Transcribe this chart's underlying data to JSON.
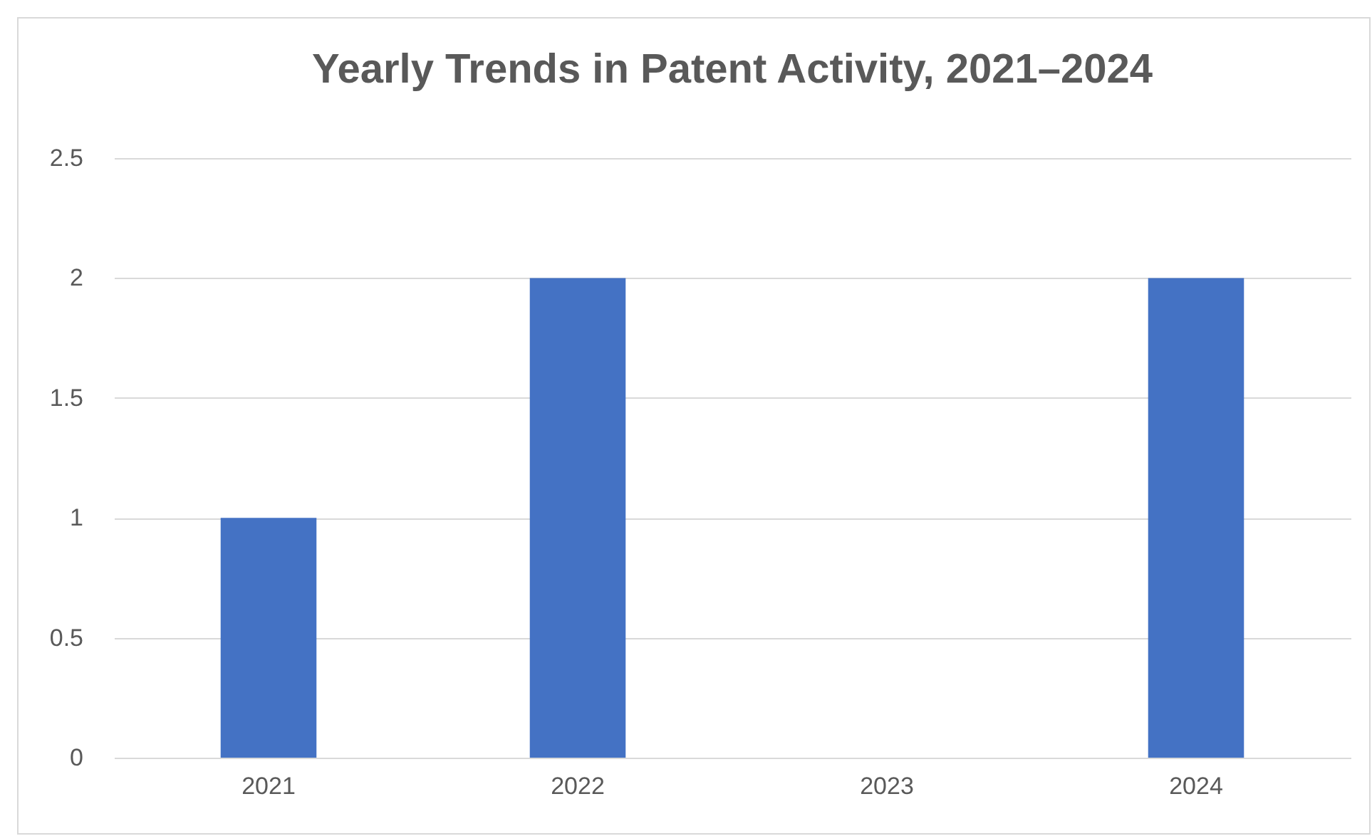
{
  "chart_data": {
    "type": "bar",
    "title": "Yearly Trends in Patent Activity, 2021–2024",
    "categories": [
      "2021",
      "2022",
      "2023",
      "2024"
    ],
    "values": [
      1,
      2,
      0,
      2
    ],
    "color": "#4472c4",
    "ylim": [
      0,
      2.5
    ],
    "yticks": [
      0,
      0.5,
      1,
      1.5,
      2,
      2.5
    ],
    "grid": "y"
  }
}
